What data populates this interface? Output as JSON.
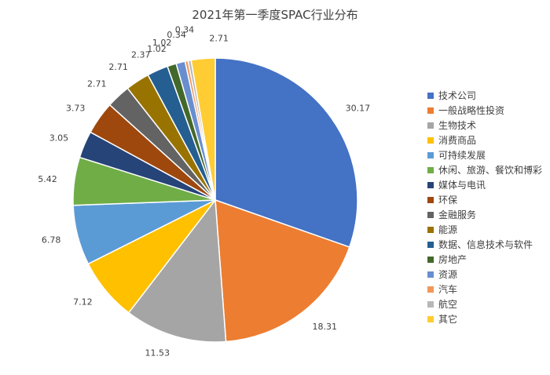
{
  "chart_data": {
    "type": "pie",
    "title": "2021年第一季度SPAC行业分布",
    "legend_position": "right",
    "categories": [
      "技术公司",
      "一般战略性投资",
      "生物技术",
      "消费商品",
      "可持续发展",
      "休闲、旅游、餐饮和博彩",
      "媒体与电讯",
      "环保",
      "金融服务",
      "能源",
      "数据、信息技术与软件",
      "房地产",
      "资源",
      "汽车",
      "航空",
      "其它"
    ],
    "values": [
      30.17,
      18.31,
      11.53,
      7.12,
      6.78,
      5.42,
      3.05,
      3.73,
      2.71,
      2.71,
      2.37,
      1.02,
      1.02,
      0.34,
      0.34,
      2.71
    ],
    "value_labels": [
      "30.17",
      "18.31",
      "11.53",
      "7.12",
      "6.78",
      "5.42",
      "3.05",
      "3.73",
      "2.71",
      "2.71",
      "2.37",
      "1.02",
      "1.02",
      "0.34",
      "0.34",
      "2.71"
    ],
    "colors": [
      "#4472C4",
      "#ED7D31",
      "#A5A5A5",
      "#FFC000",
      "#5B9BD5",
      "#70AD47",
      "#264478",
      "#9E480E",
      "#636363",
      "#997300",
      "#255E91",
      "#43682B",
      "#698ED0",
      "#F1975A",
      "#B7B7B7",
      "#FFCD33"
    ]
  }
}
